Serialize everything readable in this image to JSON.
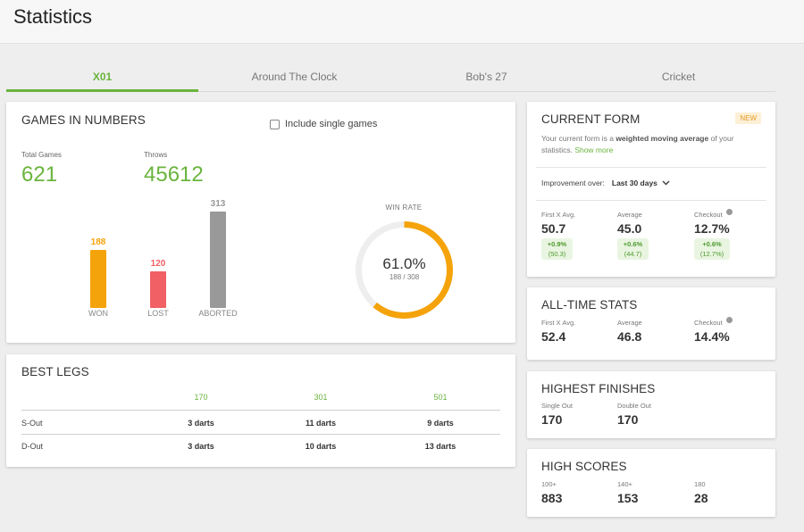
{
  "page": {
    "title": "Statistics"
  },
  "tabs": [
    {
      "label": "X01",
      "active": true
    },
    {
      "label": "Around The Clock",
      "active": false
    },
    {
      "label": "Bob's 27",
      "active": false
    },
    {
      "label": "Cricket",
      "active": false
    }
  ],
  "games": {
    "title": "GAMES IN NUMBERS",
    "include_single": {
      "label": "Include single games",
      "checked": false
    },
    "total_games_label": "Total Games",
    "total_games": "621",
    "throws_label": "Throws",
    "throws": "45612",
    "bars": [
      {
        "label": "WON",
        "value": 188,
        "value_text": "188",
        "color": "#f5a30a"
      },
      {
        "label": "LOST",
        "value": 120,
        "value_text": "120",
        "color": "#f06065"
      },
      {
        "label": "ABORTED",
        "value": 313,
        "value_text": "313",
        "color": "#999999"
      }
    ],
    "win_rate": {
      "label": "WIN RATE",
      "percent_text": "61.0%",
      "fraction_text": "188 / 308",
      "fraction": 0.61,
      "color": "#f5a30a",
      "track_color": "#eeeeee"
    }
  },
  "best_legs": {
    "title": "BEST LEGS",
    "columns": [
      "170",
      "301",
      "501"
    ],
    "rows": [
      {
        "label": "S-Out",
        "cells": [
          "3 darts",
          "11 darts",
          "9 darts"
        ]
      },
      {
        "label": "D-Out",
        "cells": [
          "3 darts",
          "10 darts",
          "13 darts"
        ]
      }
    ]
  },
  "current_form": {
    "title": "CURRENT FORM",
    "badge": "NEW",
    "desc_pre": "Your current form is a ",
    "desc_bold": "weighted moving average",
    "desc_post": " of your statistics. ",
    "show_more": "Show more",
    "improvement_label": "Improvement over:",
    "improvement_value": "Last 30 days",
    "stats": [
      {
        "label": "First X Avg.",
        "value": "50.7",
        "delta": "+0.9%",
        "prev": "(50.3)",
        "info": false
      },
      {
        "label": "Average",
        "value": "45.0",
        "delta": "+0.6%",
        "prev": "(44.7)",
        "info": false
      },
      {
        "label": "Checkout",
        "value": "12.7%",
        "delta": "+0.6%",
        "prev": "(12.7%)",
        "info": true
      }
    ]
  },
  "all_time": {
    "title": "ALL-TIME STATS",
    "stats": [
      {
        "label": "First X Avg.",
        "value": "52.4"
      },
      {
        "label": "Average",
        "value": "46.8"
      },
      {
        "label": "Checkout",
        "value": "14.4%"
      }
    ]
  },
  "highest_finishes": {
    "title": "HIGHEST FINISHES",
    "stats": [
      {
        "label": "Single Out",
        "value": "170"
      },
      {
        "label": "Double Out",
        "value": "170"
      }
    ]
  },
  "high_scores": {
    "title": "HIGH SCORES",
    "stats": [
      {
        "label": "100+",
        "value": "883"
      },
      {
        "label": "140+",
        "value": "153"
      },
      {
        "label": "180",
        "value": "28"
      }
    ]
  }
}
